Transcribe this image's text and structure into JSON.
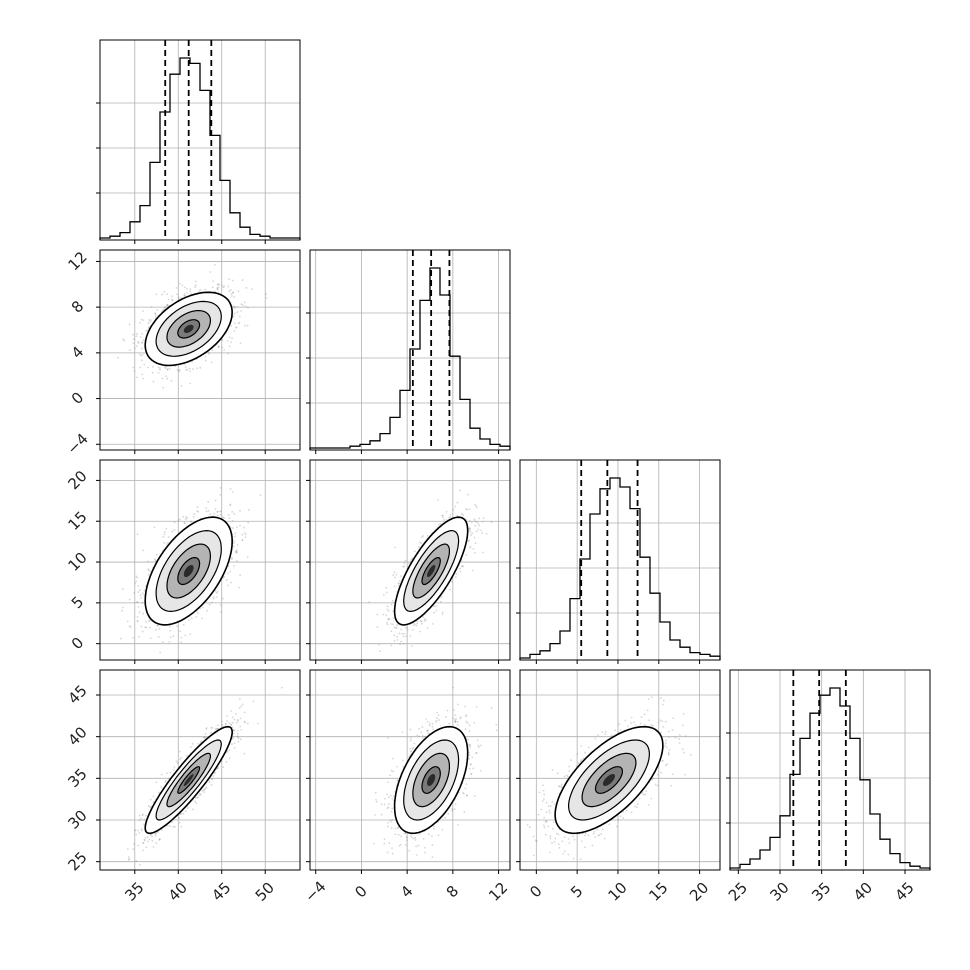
{
  "chart_data": {
    "type": "corner",
    "grid": true,
    "parameters": [
      {
        "range": [
          31,
          54
        ],
        "ticks": [
          35,
          40,
          45,
          50
        ],
        "quantiles": [
          38.5,
          41.2,
          43.8
        ],
        "hist": [
          0.0,
          0.01,
          0.03,
          0.09,
          0.18,
          0.42,
          0.7,
          0.91,
          1.0,
          0.97,
          0.82,
          0.57,
          0.32,
          0.14,
          0.06,
          0.02,
          0.01,
          0.0,
          0.0,
          0.0
        ],
        "mean": 41.2,
        "sd": 2.5
      },
      {
        "range": [
          -4.5,
          13
        ],
        "ticks": [
          -4,
          0,
          4,
          8,
          12
        ],
        "quantiles": [
          4.5,
          6.1,
          7.7
        ],
        "hist": [
          0.0,
          0.0,
          0.0,
          0.0,
          0.01,
          0.02,
          0.04,
          0.08,
          0.17,
          0.32,
          0.55,
          0.82,
          1.0,
          0.85,
          0.51,
          0.27,
          0.11,
          0.05,
          0.02,
          0.01
        ],
        "mean": 6.1,
        "sd": 1.6
      },
      {
        "range": [
          -2,
          22.5
        ],
        "ticks": [
          0,
          5,
          10,
          15,
          20
        ],
        "quantiles": [
          5.5,
          8.7,
          12.4
        ],
        "hist": [
          0.0,
          0.02,
          0.04,
          0.08,
          0.15,
          0.33,
          0.55,
          0.8,
          0.94,
          1.0,
          0.95,
          0.83,
          0.56,
          0.36,
          0.2,
          0.1,
          0.06,
          0.03,
          0.02,
          0.01
        ],
        "mean": 8.9,
        "sd": 3.3
      },
      {
        "range": [
          24,
          48
        ],
        "ticks": [
          25,
          30,
          35,
          40,
          45
        ],
        "quantiles": [
          31.6,
          34.7,
          37.9
        ],
        "hist": [
          0.0,
          0.02,
          0.05,
          0.1,
          0.17,
          0.29,
          0.52,
          0.72,
          0.86,
          0.96,
          1.0,
          0.9,
          0.72,
          0.49,
          0.3,
          0.16,
          0.08,
          0.03,
          0.01,
          0.0
        ],
        "mean": 34.8,
        "sd": 3.2
      }
    ],
    "pairs": [
      {
        "row": 1,
        "col": 0,
        "corr": 0.45
      },
      {
        "row": 2,
        "col": 0,
        "corr": 0.55
      },
      {
        "row": 2,
        "col": 1,
        "corr": 0.75
      },
      {
        "row": 3,
        "col": 0,
        "corr": 0.9
      },
      {
        "row": 3,
        "col": 1,
        "corr": 0.5
      },
      {
        "row": 3,
        "col": 2,
        "corr": 0.65
      }
    ],
    "contour_levels_sigma": [
      0.5,
      1.0,
      1.5,
      2.0
    ],
    "colors": {
      "line": "#000000",
      "grid": "#b0b0b0",
      "scatter": "#8c8c8c"
    }
  }
}
